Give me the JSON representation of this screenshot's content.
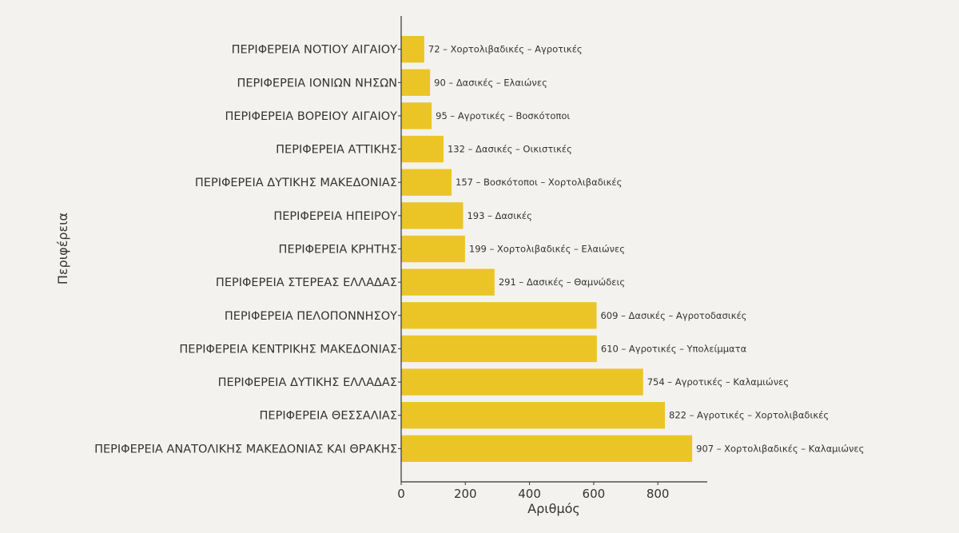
{
  "chart_data": {
    "type": "bar",
    "orientation": "horizontal",
    "title": "",
    "xlabel": "Αριθμός",
    "ylabel": "Περιφέρεια",
    "xlim": [
      0,
      954
    ],
    "xticks": [
      0,
      200,
      400,
      600,
      800
    ],
    "grid": false,
    "bar_color": "#ebc526",
    "background": "#f3f2ee",
    "categories": [
      "ΠΕΡΙΦΕΡΕΙΑ ΝΟΤΙΟΥ ΑΙΓΑΙΟΥ",
      "ΠΕΡΙΦΕΡΕΙΑ ΙΟΝΙΩΝ ΝΗΣΩΝ",
      "ΠΕΡΙΦΕΡΕΙΑ ΒΟΡΕΙΟΥ ΑΙΓΑΙΟΥ",
      "ΠΕΡΙΦΕΡΕΙΑ ΑΤΤΙΚΗΣ",
      "ΠΕΡΙΦΕΡΕΙΑ ΔΥΤΙΚΗΣ ΜΑΚΕΔΟΝΙΑΣ",
      "ΠΕΡΙΦΕΡΕΙΑ ΗΠΕΙΡΟΥ",
      "ΠΕΡΙΦΕΡΕΙΑ ΚΡΗΤΗΣ",
      "ΠΕΡΙΦΕΡΕΙΑ ΣΤΕΡΕΑΣ ΕΛΛΑΔΑΣ",
      "ΠΕΡΙΦΕΡΕΙΑ ΠΕΛΟΠΟΝΝΗΣΟΥ",
      "ΠΕΡΙΦΕΡΕΙΑ ΚΕΝΤΡΙΚΗΣ ΜΑΚΕΔΟΝΙΑΣ",
      "ΠΕΡΙΦΕΡΕΙΑ ΔΥΤΙΚΗΣ ΕΛΛΑΔΑΣ",
      "ΠΕΡΙΦΕΡΕΙΑ ΘΕΣΣΑΛΙΑΣ",
      "ΠΕΡΙΦΕΡΕΙΑ ΑΝΑΤΟΛΙΚΗΣ ΜΑΚΕΔΟΝΙΑΣ ΚΑΙ ΘΡΑΚΗΣ"
    ],
    "values": [
      72,
      90,
      95,
      132,
      157,
      193,
      199,
      291,
      609,
      610,
      754,
      822,
      907
    ],
    "data_labels": [
      "72 – Χορτολιβαδικές – Αγροτικές",
      "90 – Δασικές – Ελαιώνες",
      "95 – Αγροτικές – Βοσκότοποι",
      "132 – Δασικές – Οικιστικές",
      "157 – Βοσκότοποι – Χορτολιβαδικές",
      "193 – Δασικές",
      "199 – Χορτολιβαδικές – Ελαιώνες",
      "291 – Δασικές – Θαμνώδεις",
      "609 – Δασικές – Αγροτοδασικές",
      "610 – Αγροτικές – Υπολείμματα",
      "754 – Αγροτικές – Καλαμιώνες",
      "822 – Αγροτικές – Χορτολιβαδικές",
      "907 – Χορτολιβαδικές – Καλαμιώνες"
    ]
  }
}
